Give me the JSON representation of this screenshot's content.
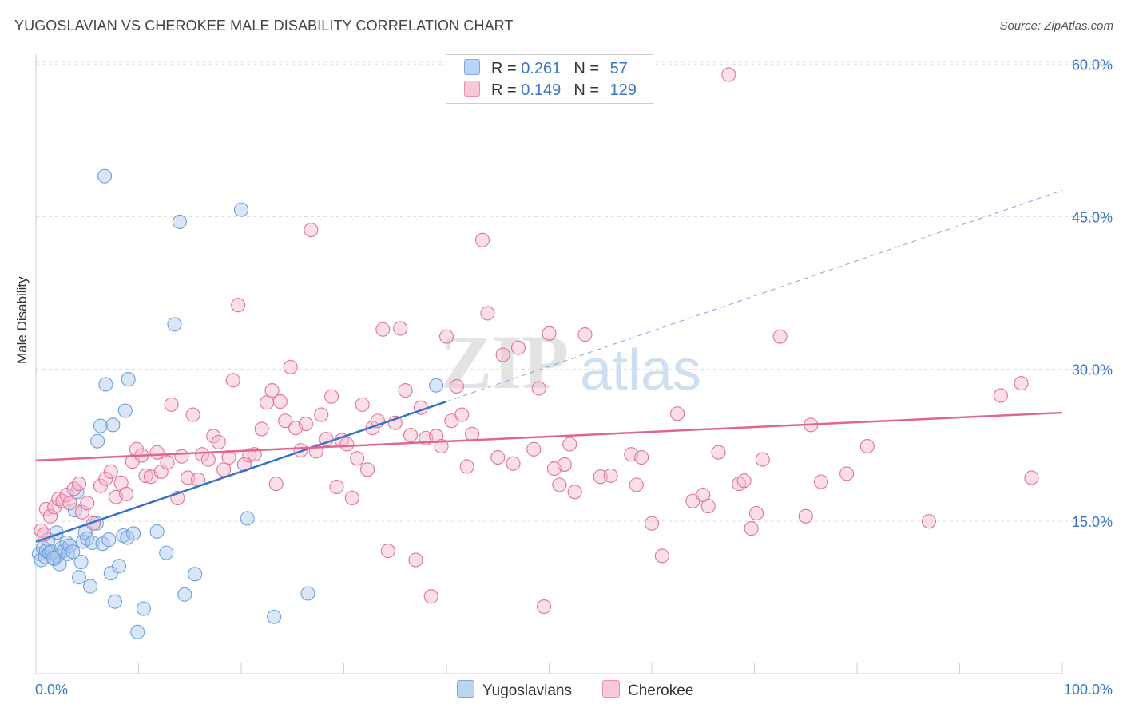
{
  "header": {
    "title": "YUGOSLAVIAN VS CHEROKEE MALE DISABILITY CORRELATION CHART",
    "source": "Source: ZipAtlas.com"
  },
  "watermark": {
    "zip": "ZIP",
    "atlas": "atlas"
  },
  "legend": {
    "rows": [
      {
        "r_label": "R =",
        "r_value": "0.261",
        "n_label": "N =",
        "n_value": "57",
        "color": "#a9c7ee"
      },
      {
        "r_label": "R =",
        "r_value": "0.149",
        "n_label": "N =",
        "n_value": "129",
        "color": "#f6b8cb"
      }
    ]
  },
  "bottom_legend": [
    {
      "label": "Yugoslavians",
      "color": "#a9c7ee"
    },
    {
      "label": "Cherokee",
      "color": "#f6b8cb"
    }
  ],
  "chart_data": {
    "type": "scatter",
    "title": "YUGOSLAVIAN VS CHEROKEE MALE DISABILITY CORRELATION CHART",
    "xlabel": "",
    "ylabel": "Male Disability",
    "xlim": [
      0,
      100
    ],
    "ylim": [
      0,
      61
    ],
    "x_tick_labels": [
      "0.0%",
      "100.0%"
    ],
    "y_ticks": [
      15,
      30,
      45,
      60
    ],
    "y_tick_labels": [
      "15.0%",
      "30.0%",
      "45.0%",
      "60.0%"
    ],
    "grid": true,
    "legend_position": "top-center",
    "series": [
      {
        "name": "Yugoslavians",
        "color": "#6fa1dd",
        "fill": "#a9c7ee",
        "r": 0.261,
        "n": 57,
        "trend": {
          "x0": 0,
          "y0": 13.0,
          "x1": 40,
          "y1": 26.8,
          "dash_to_x": 100,
          "dash_to_y": 47.6
        },
        "points": [
          [
            0.3,
            11.8
          ],
          [
            0.5,
            11.2
          ],
          [
            0.7,
            12.4
          ],
          [
            0.9,
            11.5
          ],
          [
            1.0,
            12.1
          ],
          [
            1.2,
            13.2
          ],
          [
            1.3,
            11.9
          ],
          [
            1.5,
            12.0
          ],
          [
            1.8,
            11.3
          ],
          [
            2.0,
            13.9
          ],
          [
            2.1,
            11.6
          ],
          [
            2.3,
            10.8
          ],
          [
            2.5,
            12.4
          ],
          [
            2.7,
            12.1
          ],
          [
            3.0,
            12.9
          ],
          [
            3.1,
            11.8
          ],
          [
            3.3,
            12.6
          ],
          [
            3.6,
            12.0
          ],
          [
            3.8,
            16.1
          ],
          [
            4.0,
            17.9
          ],
          [
            4.2,
            9.5
          ],
          [
            4.4,
            11.0
          ],
          [
            4.6,
            13.0
          ],
          [
            4.8,
            13.9
          ],
          [
            5.0,
            13.3
          ],
          [
            5.3,
            8.6
          ],
          [
            5.5,
            12.9
          ],
          [
            5.9,
            14.8
          ],
          [
            6.0,
            22.9
          ],
          [
            6.3,
            24.4
          ],
          [
            6.5,
            12.8
          ],
          [
            6.7,
            49.0
          ],
          [
            6.8,
            28.5
          ],
          [
            7.1,
            13.2
          ],
          [
            7.3,
            9.9
          ],
          [
            7.5,
            24.5
          ],
          [
            7.7,
            7.1
          ],
          [
            8.1,
            10.6
          ],
          [
            8.5,
            13.6
          ],
          [
            8.7,
            25.9
          ],
          [
            8.9,
            13.4
          ],
          [
            9.0,
            29.0
          ],
          [
            9.5,
            13.8
          ],
          [
            9.9,
            4.1
          ],
          [
            10.5,
            6.4
          ],
          [
            11.8,
            14.0
          ],
          [
            12.7,
            11.9
          ],
          [
            13.5,
            34.4
          ],
          [
            14.0,
            44.5
          ],
          [
            14.5,
            7.8
          ],
          [
            15.5,
            9.8
          ],
          [
            20.0,
            45.7
          ],
          [
            20.6,
            15.3
          ],
          [
            23.2,
            5.6
          ],
          [
            26.5,
            7.9
          ],
          [
            39.0,
            28.4
          ],
          [
            1.7,
            11.4
          ]
        ]
      },
      {
        "name": "Cherokee",
        "color": "#e0739a",
        "fill": "#f6b8cb",
        "r": 0.149,
        "n": 129,
        "trend": {
          "x0": 0,
          "y0": 21.0,
          "x1": 100,
          "y1": 25.7
        },
        "points": [
          [
            0.5,
            14.1
          ],
          [
            1.0,
            16.2
          ],
          [
            1.4,
            15.5
          ],
          [
            1.8,
            16.4
          ],
          [
            2.2,
            17.2
          ],
          [
            2.6,
            17.0
          ],
          [
            3.0,
            17.6
          ],
          [
            3.3,
            16.8
          ],
          [
            3.7,
            18.2
          ],
          [
            4.2,
            18.7
          ],
          [
            4.5,
            15.9
          ],
          [
            5.0,
            16.8
          ],
          [
            5.6,
            14.8
          ],
          [
            6.3,
            18.5
          ],
          [
            6.8,
            19.2
          ],
          [
            7.3,
            19.9
          ],
          [
            7.8,
            17.4
          ],
          [
            8.3,
            18.8
          ],
          [
            8.8,
            17.7
          ],
          [
            9.4,
            20.9
          ],
          [
            9.8,
            22.1
          ],
          [
            10.3,
            21.5
          ],
          [
            10.7,
            19.5
          ],
          [
            11.2,
            19.4
          ],
          [
            11.8,
            21.8
          ],
          [
            12.2,
            19.9
          ],
          [
            12.8,
            20.8
          ],
          [
            13.2,
            26.5
          ],
          [
            13.8,
            17.3
          ],
          [
            14.2,
            21.4
          ],
          [
            14.8,
            19.3
          ],
          [
            15.3,
            25.5
          ],
          [
            15.8,
            19.1
          ],
          [
            16.2,
            21.6
          ],
          [
            16.8,
            21.1
          ],
          [
            17.3,
            23.4
          ],
          [
            17.8,
            22.8
          ],
          [
            18.3,
            20.1
          ],
          [
            18.8,
            21.3
          ],
          [
            19.2,
            28.9
          ],
          [
            19.7,
            36.3
          ],
          [
            20.3,
            20.6
          ],
          [
            20.8,
            21.5
          ],
          [
            21.3,
            21.6
          ],
          [
            22.0,
            24.1
          ],
          [
            22.5,
            26.7
          ],
          [
            23.0,
            27.9
          ],
          [
            23.4,
            18.7
          ],
          [
            23.8,
            26.8
          ],
          [
            24.3,
            24.9
          ],
          [
            24.8,
            30.2
          ],
          [
            25.3,
            24.2
          ],
          [
            25.8,
            22.0
          ],
          [
            26.3,
            24.6
          ],
          [
            26.8,
            43.7
          ],
          [
            27.3,
            21.9
          ],
          [
            27.8,
            25.5
          ],
          [
            28.3,
            23.1
          ],
          [
            28.8,
            27.3
          ],
          [
            29.3,
            18.4
          ],
          [
            29.8,
            23.0
          ],
          [
            30.3,
            22.6
          ],
          [
            30.8,
            17.3
          ],
          [
            31.3,
            21.2
          ],
          [
            31.8,
            26.5
          ],
          [
            32.3,
            20.1
          ],
          [
            32.8,
            24.2
          ],
          [
            33.3,
            24.9
          ],
          [
            33.8,
            33.9
          ],
          [
            34.3,
            12.1
          ],
          [
            35.0,
            24.7
          ],
          [
            35.5,
            34.0
          ],
          [
            36.0,
            27.9
          ],
          [
            36.5,
            23.5
          ],
          [
            37.0,
            11.2
          ],
          [
            37.5,
            26.2
          ],
          [
            38.0,
            23.2
          ],
          [
            38.5,
            7.6
          ],
          [
            39.0,
            23.4
          ],
          [
            39.5,
            22.4
          ],
          [
            40.0,
            33.2
          ],
          [
            40.5,
            24.9
          ],
          [
            41.0,
            28.3
          ],
          [
            41.5,
            25.5
          ],
          [
            42.0,
            20.4
          ],
          [
            42.5,
            23.6
          ],
          [
            43.5,
            42.7
          ],
          [
            44.0,
            35.5
          ],
          [
            45.0,
            21.3
          ],
          [
            45.5,
            31.4
          ],
          [
            46.5,
            20.7
          ],
          [
            47.0,
            32.1
          ],
          [
            48.5,
            22.1
          ],
          [
            49.0,
            28.1
          ],
          [
            49.5,
            6.6
          ],
          [
            50.0,
            33.5
          ],
          [
            50.5,
            20.2
          ],
          [
            51.0,
            18.6
          ],
          [
            51.5,
            20.6
          ],
          [
            52.0,
            22.6
          ],
          [
            52.5,
            17.9
          ],
          [
            53.5,
            33.4
          ],
          [
            55.0,
            19.4
          ],
          [
            56.0,
            19.5
          ],
          [
            58.0,
            21.6
          ],
          [
            58.5,
            18.6
          ],
          [
            59.0,
            21.3
          ],
          [
            60.0,
            14.8
          ],
          [
            61.0,
            11.6
          ],
          [
            62.5,
            25.6
          ],
          [
            64.0,
            17.0
          ],
          [
            65.0,
            17.6
          ],
          [
            65.5,
            16.5
          ],
          [
            66.5,
            21.8
          ],
          [
            67.5,
            59.0
          ],
          [
            68.5,
            18.7
          ],
          [
            69.0,
            19.0
          ],
          [
            69.7,
            14.3
          ],
          [
            70.2,
            15.8
          ],
          [
            70.8,
            21.1
          ],
          [
            72.5,
            33.2
          ],
          [
            75.0,
            15.5
          ],
          [
            75.5,
            24.5
          ],
          [
            76.5,
            18.9
          ],
          [
            79.0,
            19.7
          ],
          [
            81.0,
            22.4
          ],
          [
            87.0,
            15.0
          ],
          [
            94.0,
            27.4
          ],
          [
            96.0,
            28.6
          ],
          [
            97.0,
            19.3
          ],
          [
            0.8,
            13.7
          ]
        ]
      }
    ]
  }
}
